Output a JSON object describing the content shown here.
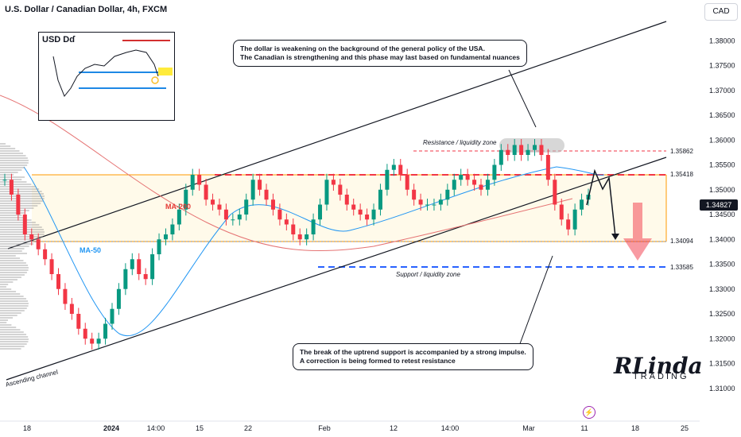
{
  "header": {
    "title": "U.S. Dollar / Canadian Dollar, 4h, FXCM",
    "currency": "CAD"
  },
  "callouts": {
    "top": "The dollar is weakening on the background of the general policy of the USA.\nThe Canadian is strengthening and this phase may last based on fundamental nuances",
    "bottom": "The break of the uptrend support is accompanied by a strong impulse.\nA correction is being formed to retest resistance"
  },
  "zones": {
    "resistance": "Resistance / liquidity zone",
    "support": "Support / liquidity zone"
  },
  "ma": {
    "ma200": "MA-200",
    "ma50": "MA-50"
  },
  "channel_label": "Ascending channel",
  "inset": {
    "title": "USD",
    "symbol": "Dɗ"
  },
  "logo": {
    "main": "RLinda",
    "sub": "TRADING"
  },
  "colors": {
    "up": "#089981",
    "down": "#f23645",
    "resistance_line": "#f23645",
    "support_line": "#2962ff",
    "ma50": "#2196f3",
    "ma200": "#e57373",
    "zone_fill": "#fff9e6"
  },
  "chart_data": {
    "type": "candlestick",
    "title": "U.S. Dollar / Canadian Dollar, 4h, FXCM",
    "ylim": [
      1.305,
      1.385
    ],
    "y_ticks": [
      "1.38000",
      "1.37500",
      "1.37000",
      "1.36500",
      "1.36000",
      "1.35500",
      "1.35000",
      "1.34500",
      "1.34000",
      "1.33500",
      "1.33000",
      "1.32500",
      "1.32000",
      "1.31500",
      "1.31000"
    ],
    "x_ticks": [
      "18",
      "2024",
      "14:00",
      "15",
      "22",
      "Feb",
      "12",
      "14:00",
      "Mar",
      "11",
      "18",
      "25"
    ],
    "current_price": "1.34827",
    "levels": [
      {
        "name": "resistance-top",
        "value": 1.35862,
        "label": "1.35862"
      },
      {
        "name": "resistance",
        "value": 1.35418,
        "label": "1.35418"
      },
      {
        "name": "support",
        "value": 1.34094,
        "label": "1.34094"
      },
      {
        "name": "liquidity",
        "value": 1.33585,
        "label": "1.33585"
      }
    ],
    "series": [
      {
        "values": [
          1.352,
          1.349,
          1.345,
          1.341,
          1.34,
          1.338,
          1.336,
          1.333,
          1.33,
          1.327,
          1.325,
          1.322,
          1.32,
          1.319,
          1.32,
          1.323,
          1.326,
          1.33,
          1.334,
          1.336,
          1.333,
          1.332,
          1.337,
          1.34,
          1.341,
          1.343,
          1.346,
          1.35,
          1.353,
          1.351,
          1.348,
          1.347,
          1.346,
          1.344,
          1.344,
          1.345,
          1.348,
          1.352,
          1.35,
          1.348,
          1.346,
          1.344,
          1.343,
          1.341,
          1.34,
          1.341,
          1.344,
          1.347,
          1.352,
          1.351,
          1.349,
          1.347,
          1.346,
          1.345,
          1.344,
          1.346,
          1.35,
          1.354,
          1.355,
          1.353,
          1.35,
          1.348,
          1.347,
          1.347,
          1.347,
          1.348,
          1.35,
          1.352,
          1.353,
          1.352,
          1.351,
          1.35,
          1.352,
          1.355,
          1.358,
          1.357,
          1.359,
          1.357,
          1.358,
          1.359,
          1.357,
          1.352,
          1.347,
          1.344,
          1.342,
          1.346,
          1.348,
          1.349
        ]
      }
    ]
  }
}
